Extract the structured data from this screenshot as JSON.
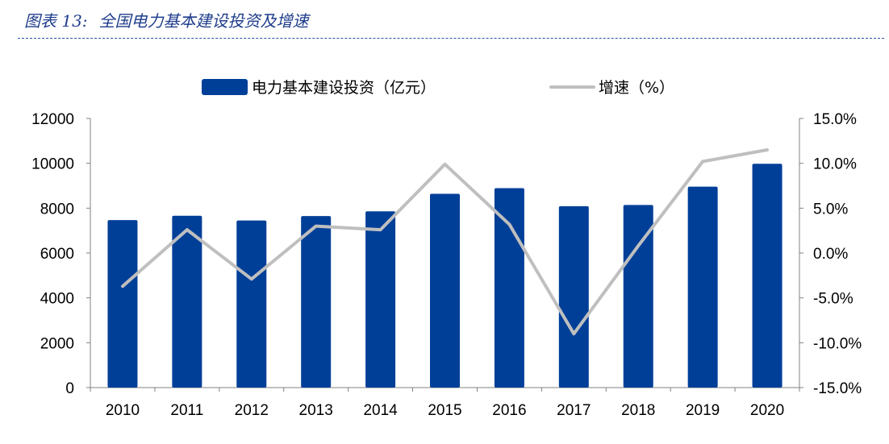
{
  "header": {
    "figure_label": "图表 13:",
    "title": "全国电力基本建设投资及增速"
  },
  "colors": {
    "bar": "#003f98",
    "line": "#bfbfbf",
    "title": "#1f3d8c",
    "axis": "#808080"
  },
  "chart_data": {
    "type": "bar",
    "title": "全国电力基本建设投资及增速",
    "categories": [
      "2010",
      "2011",
      "2012",
      "2013",
      "2014",
      "2015",
      "2016",
      "2017",
      "2018",
      "2019",
      "2020"
    ],
    "series": [
      {
        "name": "电力基本建设投资（亿元）",
        "type": "bar",
        "axis": "left",
        "values": [
          7470,
          7660,
          7450,
          7650,
          7860,
          8640,
          8890,
          8090,
          8140,
          8960,
          9980
        ]
      },
      {
        "name": "增速（%）",
        "type": "line",
        "axis": "right",
        "values": [
          -3.7,
          2.6,
          -2.9,
          3.0,
          2.6,
          9.9,
          3.2,
          -9.0,
          0.8,
          10.2,
          11.5
        ]
      }
    ],
    "y_left": {
      "lim": [
        0,
        12000
      ],
      "ticks": [
        0,
        2000,
        4000,
        6000,
        8000,
        10000,
        12000
      ],
      "tick_labels": [
        "0",
        "2000",
        "4000",
        "6000",
        "8000",
        "10000",
        "12000"
      ]
    },
    "y_right": {
      "lim": [
        -15,
        15
      ],
      "ticks": [
        -15,
        -10,
        -5,
        0,
        5,
        10,
        15
      ],
      "tick_labels": [
        "-15.0%",
        "-10.0%",
        "-5.0%",
        "0.0%",
        "5.0%",
        "10.0%",
        "15.0%"
      ]
    },
    "legend_position": "top",
    "grid": false
  }
}
